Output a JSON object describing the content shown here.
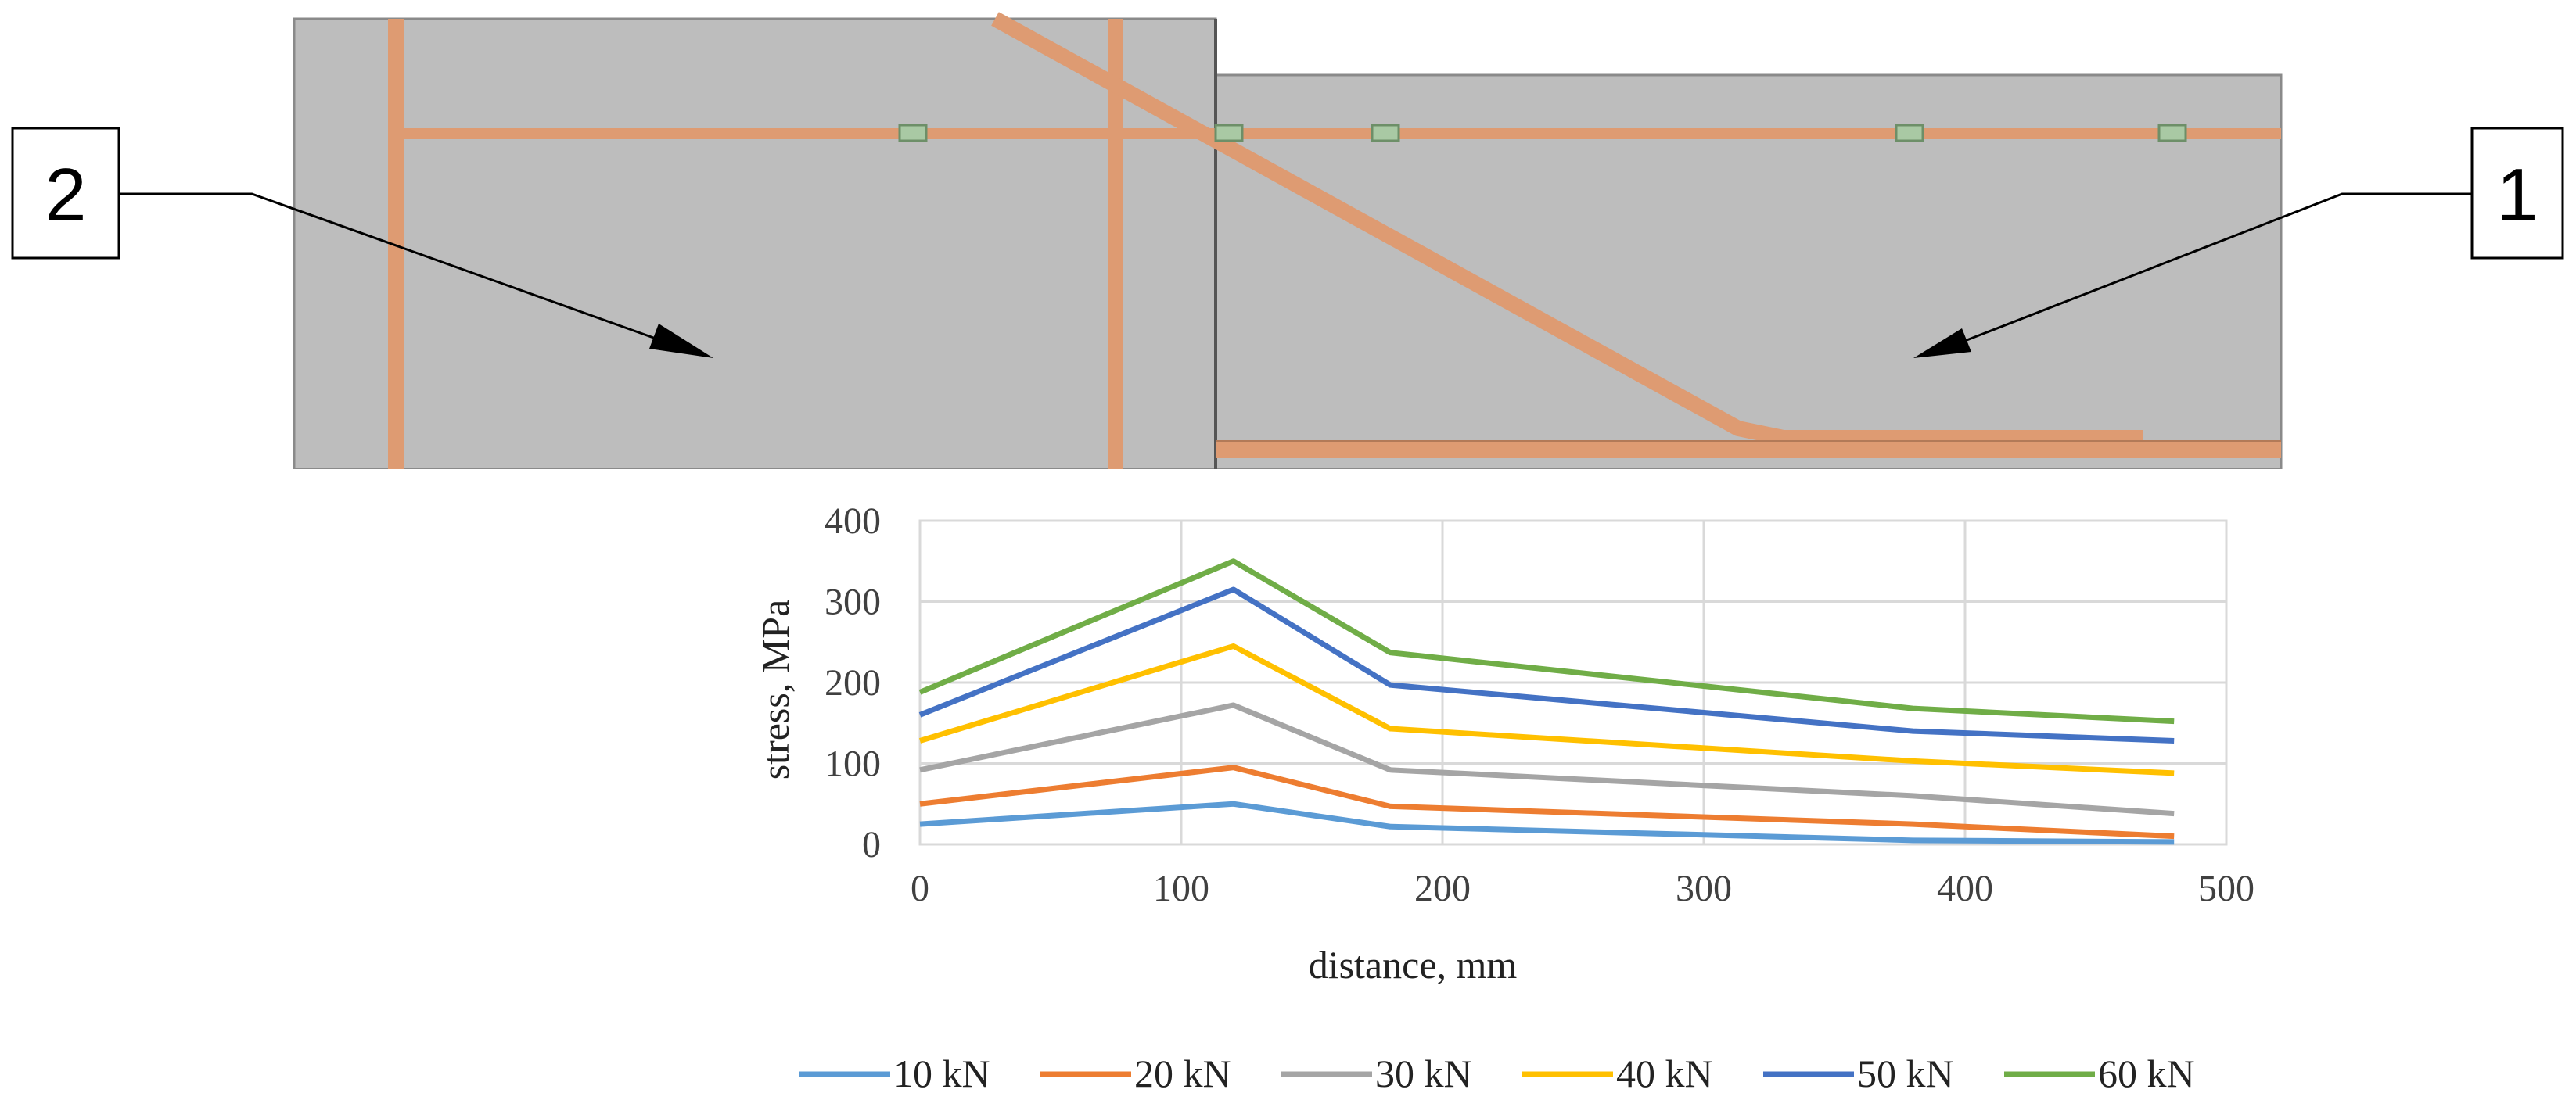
{
  "diagram": {
    "callouts": [
      {
        "label": "2"
      },
      {
        "label": "1"
      }
    ]
  },
  "chart_data": {
    "type": "line",
    "title": "",
    "xlabel": "distance, mm",
    "ylabel": "stress, MPa",
    "xlim": [
      0,
      500
    ],
    "ylim": [
      0,
      400
    ],
    "xticks": [
      0,
      100,
      200,
      300,
      400,
      500
    ],
    "yticks": [
      0,
      100,
      200,
      300,
      400
    ],
    "grid": true,
    "legend_position": "bottom",
    "x": [
      0,
      120,
      180,
      380,
      480
    ],
    "series": [
      {
        "name": "10 kN",
        "color": "#5B9BD5",
        "values": [
          25,
          50,
          22,
          5,
          3
        ]
      },
      {
        "name": "20 kN",
        "color": "#ED7D31",
        "values": [
          50,
          95,
          47,
          25,
          10
        ]
      },
      {
        "name": "30 kN",
        "color": "#A5A5A5",
        "values": [
          92,
          172,
          92,
          60,
          38
        ]
      },
      {
        "name": "40 kN",
        "color": "#FFC000",
        "values": [
          128,
          245,
          143,
          103,
          88
        ]
      },
      {
        "name": "50 kN",
        "color": "#4472C4",
        "values": [
          160,
          315,
          197,
          140,
          128
        ]
      },
      {
        "name": "60 kN",
        "color": "#70AD47",
        "values": [
          188,
          350,
          237,
          168,
          152
        ]
      }
    ]
  }
}
